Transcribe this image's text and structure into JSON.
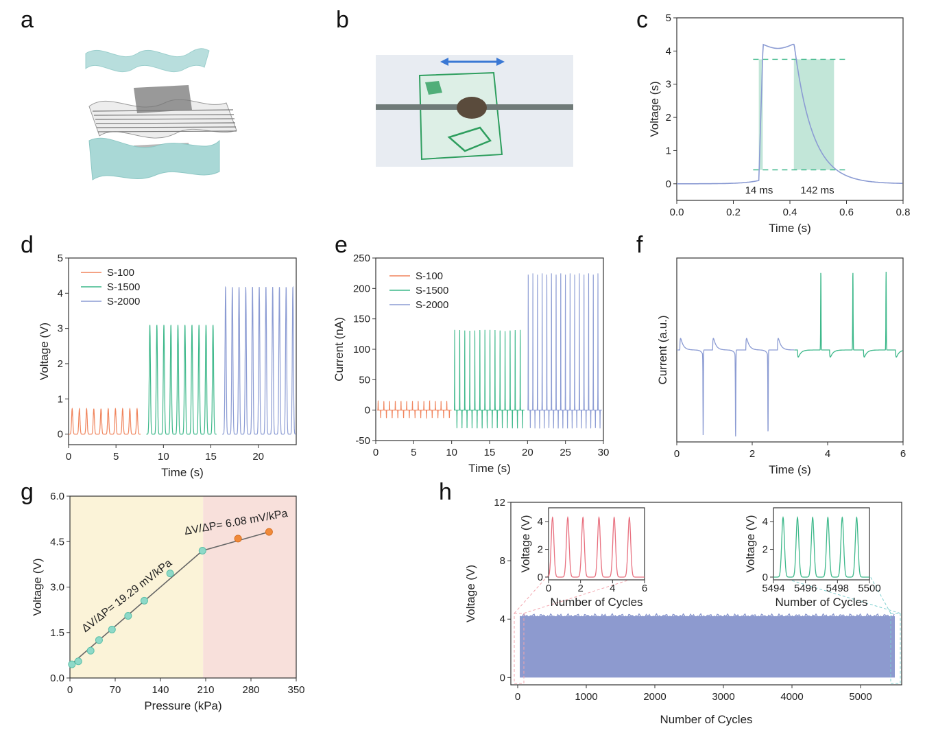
{
  "panels": {
    "a": "a",
    "b": "b",
    "c": "c",
    "d": "d",
    "e": "e",
    "f": "f",
    "g": "g",
    "h": "h"
  },
  "colors": {
    "orange": "#F0845C",
    "green": "#3DB88A",
    "blue": "#8B9BD3",
    "red": "#E8707F",
    "teal": "#7FD9D6",
    "gYellow": "#FBF3D8",
    "gPink": "#F8E0DB"
  },
  "chart_data": [
    {
      "panel": "c",
      "type": "line",
      "title": "",
      "xlabel": "Time (s)",
      "ylabel": "Voltage (s)",
      "xlim": [
        0,
        0.8
      ],
      "ylim": [
        -0.5,
        5
      ],
      "xticks": [
        0.0,
        0.2,
        0.4,
        0.6,
        0.8
      ],
      "xtick_labels": [
        "0.0",
        "0.2",
        "0.4",
        "0.6",
        "0.8"
      ],
      "yticks": [
        0,
        1,
        2,
        3,
        4,
        5
      ],
      "ytick_labels": [
        "0",
        "1",
        "2",
        "3",
        "4",
        "5"
      ],
      "annotations": [
        "14 ms",
        "142 ms"
      ],
      "upper_level": 3.75,
      "lower_level": 0.42,
      "peak": 4.2,
      "rise_window": [
        0.29,
        0.304
      ],
      "fall_window": [
        0.414,
        0.556
      ]
    },
    {
      "panel": "d",
      "type": "line",
      "xlabel": "Time (s)",
      "ylabel": "Voltage (V)",
      "xlim": [
        0,
        24
      ],
      "ylim": [
        -0.3,
        5
      ],
      "xticks": [
        0,
        5,
        10,
        15,
        20
      ],
      "xtick_labels": [
        "0",
        "5",
        "10",
        "15",
        "20"
      ],
      "yticks": [
        0,
        1,
        2,
        3,
        4,
        5
      ],
      "ytick_labels": [
        "0",
        "1",
        "2",
        "3",
        "4",
        "5"
      ],
      "series": [
        {
          "name": "S-100",
          "peak": 0.72,
          "range": [
            0,
            7.6
          ],
          "count": 10
        },
        {
          "name": "S-1500",
          "peak": 3.1,
          "range": [
            8.2,
            15.6
          ],
          "count": 10
        },
        {
          "name": "S-2000",
          "peak": 4.18,
          "range": [
            16.2,
            24
          ],
          "count": 11
        }
      ]
    },
    {
      "panel": "e",
      "type": "line",
      "xlabel": "Time (s)",
      "ylabel": "Current (nA)",
      "xlim": [
        0,
        30
      ],
      "ylim": [
        -50,
        250
      ],
      "xticks": [
        0,
        5,
        10,
        15,
        20,
        25,
        30
      ],
      "xtick_labels": [
        "0",
        "5",
        "10",
        "15",
        "20",
        "25",
        "30"
      ],
      "yticks": [
        -50,
        0,
        50,
        100,
        150,
        200,
        250
      ],
      "ytick_labels": [
        "-50",
        "0",
        "50",
        "100",
        "150",
        "200",
        "250"
      ],
      "series": [
        {
          "name": "S-100",
          "peak": 15,
          "trough": -13,
          "range": [
            0.2,
            10
          ],
          "count": 13
        },
        {
          "name": "S-1500",
          "peak": 132,
          "trough": -30,
          "range": [
            10.3,
            19.6
          ],
          "count": 14
        },
        {
          "name": "S-2000",
          "peak": 225,
          "trough": -30,
          "range": [
            20,
            29.8
          ],
          "count": 16
        }
      ]
    },
    {
      "panel": "f",
      "type": "line",
      "xlabel": "Time (s)",
      "ylabel": "Current (a.u.)",
      "xlim": [
        0,
        6
      ],
      "xticks": [
        0,
        2,
        4,
        6
      ],
      "xtick_labels": [
        "0",
        "2",
        "4",
        "6"
      ],
      "blue_pos_peaks": [
        0.08,
        0.95,
        1.83,
        2.67
      ],
      "blue_neg_peaks": [
        0.7,
        1.56,
        2.42
      ],
      "green_pos_peaks": [
        3.82,
        4.67,
        5.55
      ],
      "green_neg_peaks": [
        3.2,
        4.05,
        4.95,
        5.8
      ]
    },
    {
      "panel": "g",
      "type": "scatter",
      "xlabel": "Pressure (kPa)",
      "ylabel": "Voltage (V)",
      "xlim": [
        0,
        350
      ],
      "ylim": [
        0,
        6
      ],
      "xticks": [
        0,
        70,
        140,
        210,
        280,
        350
      ],
      "xtick_labels": [
        "0",
        "70",
        "140",
        "210",
        "280",
        "350"
      ],
      "yticks": [
        0,
        1.5,
        3,
        4.5,
        6
      ],
      "ytick_labels": [
        "0.0",
        "1.5",
        "3.0",
        "4.5",
        "6.0"
      ],
      "series": [
        {
          "name": "low",
          "x": [
            3,
            13,
            32,
            45,
            65,
            90,
            115,
            155,
            205
          ],
          "y": [
            0.45,
            0.55,
            0.9,
            1.25,
            1.6,
            2.05,
            2.55,
            3.45,
            4.2
          ]
        },
        {
          "name": "high",
          "x": [
            260,
            308
          ],
          "y": [
            4.6,
            4.82
          ]
        }
      ],
      "regions": [
        [
          0,
          206
        ],
        [
          206,
          350
        ]
      ],
      "annotations": [
        "ΔV/ΔP= 19.29 mV/kPa",
        "ΔV/ΔP= 6.08 mV/kPa"
      ]
    },
    {
      "panel": "h",
      "type": "area",
      "xlabel": "Number of Cycles",
      "ylabel": "Voltage (V)",
      "xlim": [
        -100,
        5600
      ],
      "ylim": [
        -0.5,
        12
      ],
      "xticks": [
        0,
        1000,
        2000,
        3000,
        4000,
        5000
      ],
      "xtick_labels": [
        "0",
        "1000",
        "2000",
        "3000",
        "4000",
        "5000"
      ],
      "yticks": [
        0,
        4,
        8,
        12
      ],
      "ytick_labels": [
        "0",
        "4",
        "8",
        "12"
      ],
      "band": [
        0,
        4.2
      ],
      "band_x": [
        30,
        5500
      ],
      "insets": [
        {
          "xlabel": "Number of Cycles",
          "ylabel": "Voltage (V)",
          "xlim": [
            0,
            6
          ],
          "ylim": [
            -0.2,
            5
          ],
          "xticks": [
            0,
            2,
            4,
            6
          ],
          "xtick_labels": [
            "0",
            "2",
            "4",
            "6"
          ],
          "yticks": [
            0,
            2,
            4
          ],
          "ytick_labels": [
            "0",
            "2",
            "4"
          ],
          "peaks": [
            0.25,
            1.2,
            2.15,
            3.15,
            4.1,
            5.05
          ],
          "color": "red"
        },
        {
          "xlabel": "Number of Cycles",
          "ylabel": "Voltage (V)",
          "xlim": [
            5494,
            5500
          ],
          "ylim": [
            -0.2,
            5
          ],
          "xticks": [
            5494,
            5496,
            5498,
            5500
          ],
          "xtick_labels": [
            "5494",
            "5496",
            "5498",
            "5500"
          ],
          "yticks": [
            0,
            2,
            4
          ],
          "ytick_labels": [
            "0",
            "2",
            "4"
          ],
          "peaks": [
            5494.6,
            5495.5,
            5496.45,
            5497.4,
            5498.3,
            5499.2
          ],
          "color": "green"
        }
      ]
    }
  ]
}
